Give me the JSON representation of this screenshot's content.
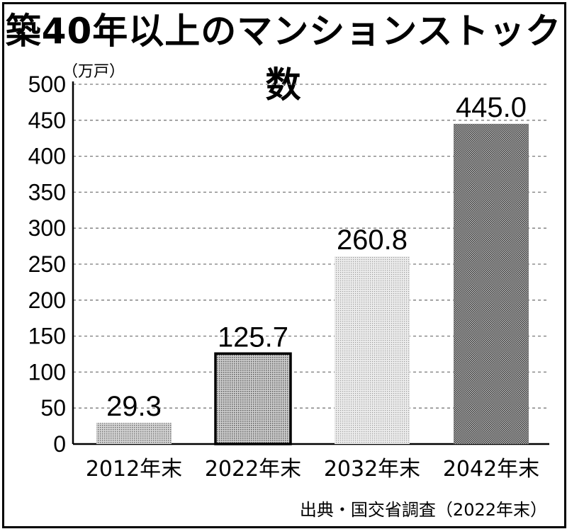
{
  "title": "築40年以上のマンションストック数",
  "unit_label": "（万戸）",
  "source": "出典・国交省調査（2022年末）",
  "colors": {
    "text": "#000000",
    "grid": "#7a7a7a",
    "axis": "#000000"
  },
  "chart_data": {
    "type": "bar",
    "title": "築40年以上のマンションストック数",
    "ylabel": "（万戸）",
    "xlabel": "",
    "categories": [
      "2012年末",
      "2022年末",
      "2032年末",
      "2042年末"
    ],
    "values": [
      29.3,
      125.7,
      260.8,
      445.0
    ],
    "value_labels": [
      "29.3",
      "125.7",
      "260.8",
      "445.0"
    ],
    "ylim": [
      0,
      500
    ],
    "yticks": [
      0,
      50,
      100,
      150,
      200,
      250,
      300,
      350,
      400,
      450,
      500
    ],
    "grid": true,
    "grid_style": "dashed",
    "highlighted_category": "2022年末"
  }
}
